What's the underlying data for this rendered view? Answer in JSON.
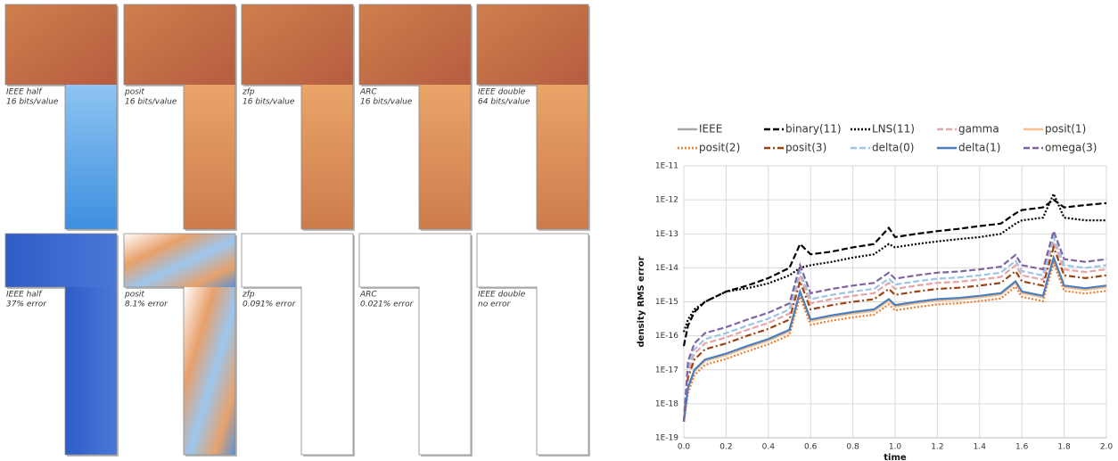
{
  "panels": [
    [
      {
        "name": "IEEE half",
        "detail": "16 bits/value"
      },
      {
        "name": "posit",
        "detail": "16 bits/value"
      },
      {
        "name": "zfp",
        "detail": "16 bits/value"
      },
      {
        "name": "ARC",
        "detail": "16 bits/value"
      },
      {
        "name": "IEEE double",
        "detail": "64 bits/value"
      }
    ],
    [
      {
        "name": "IEEE half",
        "detail": "37% error"
      },
      {
        "name": "posit",
        "detail": "8.1% error"
      },
      {
        "name": "zfp",
        "detail": "0.091% error"
      },
      {
        "name": "ARC",
        "detail": "0.021% error"
      },
      {
        "name": "IEEE double",
        "detail": "no error"
      }
    ]
  ],
  "chart_data": {
    "type": "line",
    "x_label": "time",
    "y_label": "density RMS error",
    "log_y": true,
    "grid": true,
    "x": [
      0,
      0.02,
      0.05,
      0.1,
      0.2,
      0.3,
      0.4,
      0.5,
      0.55,
      0.6,
      0.7,
      0.8,
      0.9,
      0.97,
      1.0,
      1.1,
      1.2,
      1.3,
      1.4,
      1.5,
      1.57,
      1.6,
      1.7,
      1.75,
      1.8,
      1.9,
      2.0
    ],
    "xlim": [
      0,
      2
    ],
    "xticks": [
      {
        "value": 0,
        "label": "0.0"
      },
      0.2,
      0.4,
      0.6,
      0.8,
      {
        "value": 1,
        "label": "1.0"
      },
      1.2,
      1.4,
      1.6,
      1.8,
      {
        "value": 2,
        "label": "2.0"
      }
    ],
    "ylim": [
      1e-19,
      1e-11
    ],
    "yticks": [
      {
        "value": 1e-19,
        "label": "1E-19"
      },
      {
        "value": 1e-18,
        "label": "1E-18"
      },
      {
        "value": 1e-17,
        "label": "1E-17"
      },
      {
        "value": 1e-16,
        "label": "1E-16"
      },
      {
        "value": 1e-15,
        "label": "1E-15"
      },
      {
        "value": 1e-14,
        "label": "1E-14"
      },
      {
        "value": 1e-13,
        "label": "1E-13"
      },
      {
        "value": 1e-12,
        "label": "1E-12"
      },
      {
        "value": 1e-11,
        "label": "1E-11"
      }
    ],
    "series": [
      {
        "name": "IEEE",
        "color": "#a6a6a6",
        "dash": "solid",
        "values": [
          3e-19,
          3e-18,
          1e-17,
          2e-17,
          3e-17,
          5e-17,
          8e-17,
          1.5e-16,
          2e-15,
          3e-16,
          4e-16,
          5e-16,
          6e-16,
          1.2e-15,
          8e-16,
          1e-15,
          1.2e-15,
          1.3e-15,
          1.5e-15,
          1.8e-15,
          4e-15,
          2e-15,
          1.5e-15,
          2e-14,
          3e-15,
          2.5e-15,
          3e-15
        ]
      },
      {
        "name": "binary(11)",
        "color": "#000000",
        "dash": "dashed",
        "values": [
          5e-17,
          2e-16,
          5e-16,
          1e-15,
          2e-15,
          3e-15,
          5e-15,
          1e-14,
          5e-14,
          2.5e-14,
          3e-14,
          4e-14,
          5e-14,
          1.5e-13,
          8e-14,
          1e-13,
          1.2e-13,
          1.4e-13,
          1.7e-13,
          2e-13,
          4e-13,
          5e-13,
          6e-13,
          1e-12,
          6e-13,
          7e-13,
          8e-13
        ]
      },
      {
        "name": "LNS(11)",
        "color": "#000000",
        "dash": "dotted",
        "values": [
          1.3e-16,
          3e-16,
          6e-16,
          1e-15,
          2e-15,
          2.5e-15,
          3.5e-15,
          6e-15,
          1e-14,
          1.2e-14,
          1.5e-14,
          2e-14,
          2.5e-14,
          5e-14,
          4e-14,
          5e-14,
          6e-14,
          7e-14,
          8e-14,
          1e-13,
          2e-13,
          2.5e-13,
          3e-13,
          1.5e-12,
          3e-13,
          2.5e-13,
          2.5e-13
        ]
      },
      {
        "name": "gamma",
        "color": "#e8a3a3",
        "dash": "dashed",
        "values": [
          3e-19,
          9e-18,
          3e-17,
          6e-17,
          9e-17,
          1.5e-16,
          2.4e-16,
          4.5e-16,
          6e-15,
          9e-16,
          1.2e-15,
          1.5e-15,
          1.8e-15,
          3.6e-15,
          2.4e-15,
          3e-15,
          3.6e-15,
          3.9e-15,
          4.5e-15,
          5.4e-15,
          1.2e-14,
          6e-15,
          4.5e-15,
          6e-14,
          9e-15,
          7.5e-15,
          9e-15
        ]
      },
      {
        "name": "posit(1)",
        "color": "#f7c08f",
        "dash": "solid",
        "values": [
          3e-19,
          2.7e-18,
          9e-18,
          1.8e-17,
          2.7e-17,
          4.5e-17,
          7.2e-17,
          1.35e-16,
          1.8e-15,
          2.7e-16,
          3.6e-16,
          4.5e-16,
          5.4e-16,
          1.08e-15,
          7.2e-16,
          9e-16,
          1.08e-15,
          1.17e-15,
          1.35e-15,
          1.62e-15,
          3.6e-15,
          1.8e-15,
          1.35e-15,
          1.8e-14,
          2.7e-15,
          2.25e-15,
          2.7e-15
        ]
      },
      {
        "name": "posit(2)",
        "color": "#ed7d31",
        "dash": "dotted",
        "values": [
          3e-19,
          2.1e-18,
          7e-18,
          1.4e-17,
          2.1e-17,
          3.5e-17,
          5.6e-17,
          1.05e-16,
          1.4e-15,
          2.1e-16,
          2.8e-16,
          3.5e-16,
          4.2e-16,
          8.4e-16,
          5.6e-16,
          7e-16,
          8.4e-16,
          9.1e-16,
          1.05e-15,
          1.26e-15,
          2.8e-15,
          1.4e-15,
          1.05e-15,
          1.4e-14,
          2.1e-15,
          1.75e-15,
          2.1e-15
        ]
      },
      {
        "name": "posit(3)",
        "color": "#9c4310",
        "dash": "dashdot",
        "values": [
          3e-19,
          6e-18,
          2e-17,
          4e-17,
          6e-17,
          1e-16,
          1.6e-16,
          3e-16,
          4e-15,
          6e-16,
          8e-16,
          1e-15,
          1.2e-15,
          2.4e-15,
          1.6e-15,
          2e-15,
          2.4e-15,
          2.6e-15,
          3e-15,
          3.6e-15,
          8e-15,
          4e-15,
          3e-15,
          4e-14,
          6e-15,
          5e-15,
          6e-15
        ]
      },
      {
        "name": "delta(0)",
        "color": "#9dc3e6",
        "dash": "dashed",
        "values": [
          3e-19,
          1.2e-17,
          4e-17,
          8e-17,
          1.2e-16,
          2e-16,
          3.2e-16,
          6e-16,
          8e-15,
          1.2e-15,
          1.6e-15,
          2e-15,
          2.4e-15,
          4.8e-15,
          3.2e-15,
          4e-15,
          4.8e-15,
          5.2e-15,
          6e-15,
          7.2e-15,
          1.6e-14,
          8e-15,
          6e-15,
          8e-14,
          1.2e-14,
          1e-14,
          1.2e-14
        ]
      },
      {
        "name": "delta(1)",
        "color": "#4a7fc1",
        "dash": "solid",
        "values": [
          3e-19,
          3e-18,
          1e-17,
          2e-17,
          3e-17,
          5e-17,
          8e-17,
          1.5e-16,
          2e-15,
          3e-16,
          4e-16,
          5e-16,
          6e-16,
          1.2e-15,
          8e-16,
          1e-15,
          1.2e-15,
          1.3e-15,
          1.5e-15,
          1.8e-15,
          4e-15,
          2e-15,
          1.5e-15,
          2e-14,
          3e-15,
          2.5e-15,
          3e-15
        ]
      },
      {
        "name": "omega(3)",
        "color": "#8064a2",
        "dash": "dashed",
        "values": [
          3e-19,
          1.8e-17,
          6e-17,
          1.2e-16,
          1.8e-16,
          3e-16,
          4.8e-16,
          9e-16,
          1.2e-14,
          1.8e-15,
          2.4e-15,
          3e-15,
          3.6e-15,
          7.2e-15,
          4.8e-15,
          6e-15,
          7.2e-15,
          7.8e-15,
          9e-15,
          1.08e-14,
          2.4e-14,
          1.2e-14,
          9e-15,
          1.2e-13,
          1.8e-14,
          1.5e-14,
          1.8e-14
        ]
      }
    ]
  }
}
